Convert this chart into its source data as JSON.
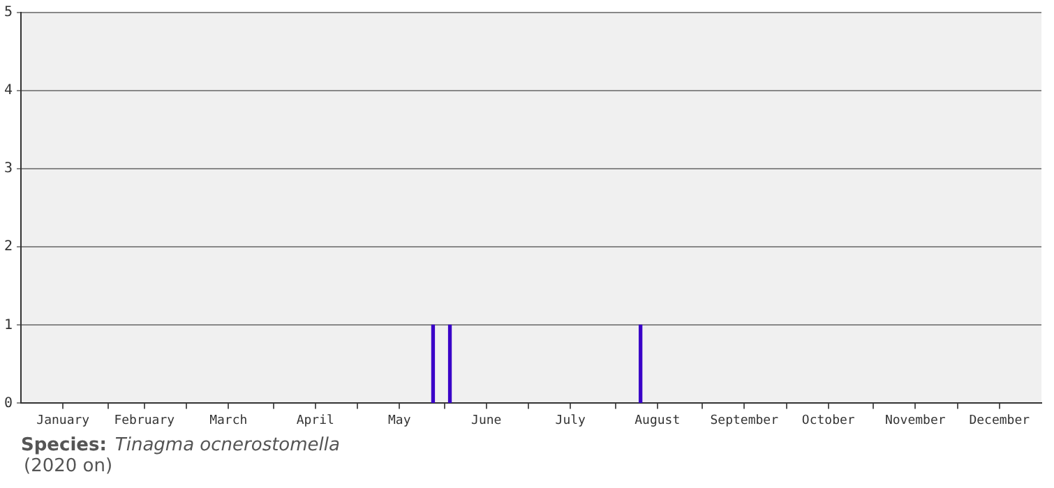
{
  "chart_data": {
    "type": "bar",
    "x": [
      "--05-28",
      "--06-03",
      "--08-10"
    ],
    "values": [
      1,
      1,
      1
    ],
    "color": "#3a00c8",
    "xlim": [
      "--01-01",
      "--12-31"
    ],
    "xticks": [
      {
        "value": "--01-16",
        "label": "January"
      },
      {
        "value": "--02-01",
        "label": null
      },
      {
        "value": "--02-14",
        "label": "February"
      },
      {
        "value": "--03-01",
        "label": null
      },
      {
        "value": "--03-16",
        "label": "March"
      },
      {
        "value": "--04-01",
        "label": null
      },
      {
        "value": "--04-16",
        "label": "April"
      },
      {
        "value": "--05-01",
        "label": null
      },
      {
        "value": "--05-16",
        "label": "May"
      },
      {
        "value": "--06-01",
        "label": null
      },
      {
        "value": "--06-16",
        "label": "June"
      },
      {
        "value": "--07-01",
        "label": null
      },
      {
        "value": "--07-16",
        "label": "July"
      },
      {
        "value": "--08-01",
        "label": null
      },
      {
        "value": "--08-16",
        "label": "August"
      },
      {
        "value": "--09-01",
        "label": null
      },
      {
        "value": "--09-16",
        "label": "September"
      },
      {
        "value": "--10-01",
        "label": null
      },
      {
        "value": "--10-16",
        "label": "October"
      },
      {
        "value": "--11-01",
        "label": null
      },
      {
        "value": "--11-16",
        "label": "November"
      },
      {
        "value": "--12-01",
        "label": null
      },
      {
        "value": "--12-16",
        "label": "December"
      }
    ],
    "ylim": [
      0,
      5
    ],
    "yticks": [
      0,
      1,
      2,
      3,
      4,
      5
    ],
    "grid": "y",
    "legend": false,
    "annotations": [
      "Species:",
      "Tinagma ocnerostomella",
      "(2020 on)"
    ]
  }
}
